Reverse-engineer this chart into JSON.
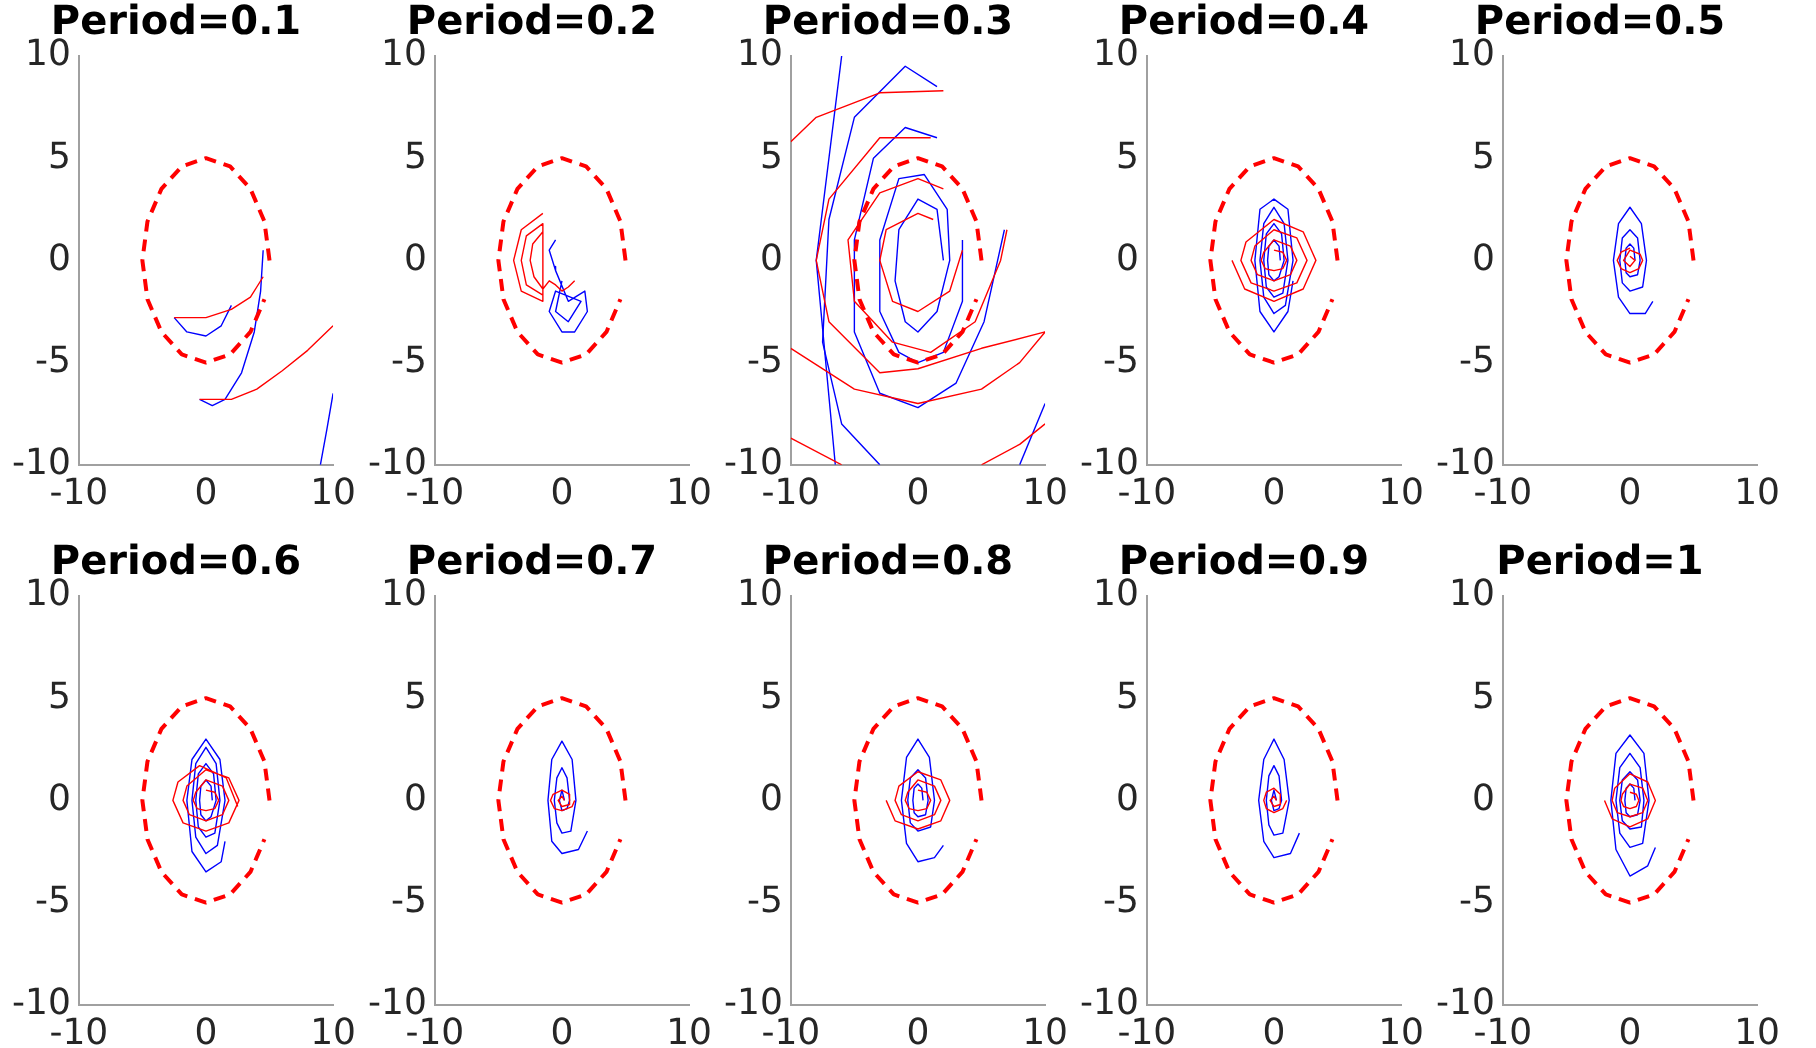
{
  "chart_data": [
    {
      "type": "line",
      "title": "Period=0.1",
      "xlim": [
        -10,
        10
      ],
      "xticks": [
        -10,
        0,
        10
      ],
      "ylim": [
        -10,
        10
      ],
      "yticks": [
        -10,
        -5,
        0,
        5,
        10
      ],
      "series": [
        {
          "color": "#0000ff",
          "x": [
            -2.5,
            -1.5,
            0,
            1.2,
            2
          ],
          "values": [
            -2.8,
            -3.5,
            -3.7,
            -3.2,
            -2.2
          ]
        },
        {
          "color": "#0000ff",
          "x": [
            -0.5,
            0.5,
            1.5,
            2.8,
            3.8,
            4.3,
            4.5
          ],
          "values": [
            -6.8,
            -7.1,
            -6.8,
            -5.5,
            -3.5,
            -1.5,
            0.5
          ]
        },
        {
          "color": "#0000ff",
          "x": [
            9,
            9.5,
            10
          ],
          "values": [
            -10,
            -8.3,
            -6.5
          ]
        },
        {
          "color": "#ff0000",
          "x": [
            -2.5,
            0,
            2,
            3.5,
            4.5
          ],
          "values": [
            -2.8,
            -2.8,
            -2.4,
            -1.8,
            -0.8
          ]
        },
        {
          "color": "#ff0000",
          "x": [
            -0.5,
            2,
            4,
            6,
            8,
            10
          ],
          "values": [
            -6.8,
            -6.8,
            -6.3,
            -5.4,
            -4.4,
            -3.2
          ]
        },
        {
          "color": "#ff0000",
          "line_style": "dashed",
          "x": [
            5,
            4.6,
            3.5,
            1.9,
            0,
            -1.9,
            -3.5,
            -4.6,
            -5,
            -4.6,
            -3.5,
            -1.9,
            0,
            1.9,
            3.5,
            4.6
          ],
          "values": [
            0,
            1.9,
            3.5,
            4.6,
            5,
            4.6,
            3.5,
            1.9,
            0,
            -1.9,
            -3.5,
            -4.6,
            -5,
            -4.6,
            -3.5,
            -1.9
          ]
        }
      ]
    },
    {
      "type": "line",
      "title": "Period=0.2",
      "xlim": [
        -10,
        10
      ],
      "xticks": [
        -10,
        0,
        10
      ],
      "ylim": [
        -10,
        10
      ],
      "yticks": [
        -10,
        -5,
        0,
        5,
        10
      ],
      "series": [
        {
          "color": "#0000ff",
          "x": [
            -0.5,
            -1,
            -0.6,
            -0.5,
            0.5,
            1.8,
            2,
            1,
            0,
            -1,
            -0.5,
            1.5,
            0.5,
            -0.5,
            0
          ],
          "values": [
            1,
            0.5,
            -0.3,
            -0.5,
            -2,
            -1.5,
            -2.5,
            -3.5,
            -3.5,
            -2.5,
            -1.5,
            -2,
            -3,
            -2.5,
            -1
          ]
        },
        {
          "color": "#ff0000",
          "x": [
            -1.5,
            -3.2,
            -3.8,
            -3.2,
            -1.5,
            -1.5,
            -2.8,
            -3.2,
            -2.8,
            -1.5,
            -1.5,
            -2.3,
            -2.5,
            -2.2,
            -1.5,
            -1,
            -0.5,
            0,
            0.5,
            1
          ],
          "values": [
            2.3,
            1.5,
            0,
            -1.5,
            -2,
            1.8,
            1.2,
            0,
            -1.2,
            -1.7,
            1.4,
            0.8,
            0,
            -0.8,
            -1.4,
            -1,
            -1.2,
            -1.5,
            -1.3,
            -1
          ]
        },
        {
          "color": "#ff0000",
          "line_style": "dashed",
          "x": [
            5,
            4.6,
            3.5,
            1.9,
            0,
            -1.9,
            -3.5,
            -4.6,
            -5,
            -4.6,
            -3.5,
            -1.9,
            0,
            1.9,
            3.5,
            4.6
          ],
          "values": [
            0,
            1.9,
            3.5,
            4.6,
            5,
            4.6,
            3.5,
            1.9,
            0,
            -1.9,
            -3.5,
            -4.6,
            -5,
            -4.6,
            -3.5,
            -1.9
          ]
        }
      ]
    },
    {
      "type": "line",
      "title": "Period=0.3",
      "xlim": [
        -10,
        10
      ],
      "xticks": [
        -10,
        0,
        10
      ],
      "ylim": [
        -10,
        10
      ],
      "yticks": [
        -10,
        -5,
        0,
        5,
        10
      ],
      "series": [
        {
          "color": "#0000ff",
          "x": [
            2,
            1.5,
            0,
            -1.5,
            -1.8,
            -1,
            0,
            1.5,
            2.5,
            2.3,
            0.5,
            -1.5,
            -3,
            -3,
            -1.5,
            0,
            2,
            3.5,
            3.5
          ],
          "values": [
            0,
            2.5,
            3,
            1.5,
            -1,
            -3,
            -3.5,
            -2.5,
            0,
            2.5,
            4.2,
            4,
            1,
            -2.5,
            -4.5,
            -5,
            -4.5,
            -2,
            1
          ]
        },
        {
          "color": "#0000ff",
          "x": [
            1.5,
            -1,
            -3.5,
            -5,
            -5,
            -3,
            0,
            3,
            5.2,
            6.8
          ],
          "values": [
            6,
            6.5,
            5,
            1,
            -3.5,
            -6.5,
            -7.2,
            -6,
            -3,
            1.5
          ]
        },
        {
          "color": "#0000ff",
          "x": [
            1.5,
            -1,
            -5,
            -7,
            -7.5,
            -6,
            -3
          ],
          "values": [
            8.5,
            9.5,
            7,
            2,
            -4,
            -8,
            -10
          ]
        },
        {
          "color": "#0000ff",
          "x": [
            -6,
            -8,
            -6.5
          ],
          "values": [
            10,
            0,
            -10
          ]
        },
        {
          "color": "#0000ff",
          "x": [
            10,
            8
          ],
          "values": [
            -7,
            -10
          ]
        },
        {
          "color": "#ff0000",
          "x": [
            1.2,
            0,
            -2.5,
            -3,
            -2,
            0,
            2.5,
            3.5
          ],
          "values": [
            2,
            2.3,
            1.5,
            0,
            -2,
            -2.5,
            -1.5,
            0.5
          ]
        },
        {
          "color": "#ff0000",
          "x": [
            2,
            0,
            -3,
            -5.5,
            -5,
            -2,
            1,
            4.5,
            6.5,
            7
          ],
          "values": [
            3.5,
            4,
            3.3,
            1,
            -2,
            -4,
            -4.5,
            -3,
            0,
            1.5
          ]
        },
        {
          "color": "#ff0000",
          "x": [
            1,
            -3,
            -7,
            -8,
            -7,
            -3,
            0,
            5,
            10
          ],
          "values": [
            6,
            6,
            3,
            0,
            -3,
            -5.5,
            -5.3,
            -4.3,
            -3.5
          ]
        },
        {
          "color": "#ff0000",
          "x": [
            2,
            -3,
            -8,
            -10
          ],
          "values": [
            8.3,
            8.2,
            7,
            5.8
          ]
        },
        {
          "color": "#ff0000",
          "x": [
            -10,
            -5,
            0,
            5,
            8,
            10
          ],
          "values": [
            -4.3,
            -6.3,
            -7,
            -6.3,
            -5,
            -3.5
          ]
        },
        {
          "color": "#ff0000",
          "x": [
            -10,
            -6
          ],
          "values": [
            -8.7,
            -10
          ]
        },
        {
          "color": "#ff0000",
          "x": [
            5,
            8,
            10
          ],
          "values": [
            -10,
            -9,
            -8
          ]
        },
        {
          "color": "#ff0000",
          "line_style": "dashed",
          "x": [
            5,
            4.6,
            3.5,
            1.9,
            0,
            -1.9,
            -3.5,
            -4.6,
            -5,
            -4.6,
            -3.5,
            -1.9,
            0,
            1.9,
            3.5,
            4.6
          ],
          "values": [
            0,
            1.9,
            3.5,
            4.6,
            5,
            4.6,
            3.5,
            1.9,
            0,
            -1.9,
            -3.5,
            -4.6,
            -5,
            -4.6,
            -3.5,
            -1.9
          ]
        }
      ]
    },
    {
      "type": "line",
      "title": "Period=0.4",
      "xlim": [
        -10,
        10
      ],
      "xticks": [
        -10,
        0,
        10
      ],
      "ylim": [
        -10,
        10
      ],
      "yticks": [
        -10,
        -5,
        0,
        5,
        10
      ],
      "series": [
        {
          "color": "#0000ff",
          "x": [
            0.5,
            0.4,
            0,
            -0.4,
            -0.5,
            -0.4,
            0,
            0.4,
            0.8,
            0.6,
            0,
            -0.6,
            -0.8,
            -0.6,
            0,
            0.7,
            1.1,
            0.8,
            0,
            -0.8,
            -1.1,
            -0.8,
            0,
            0.9,
            1.5,
            1.1,
            0,
            -1.1,
            -1.5,
            -1.1,
            0,
            1.1,
            1.5
          ],
          "values": [
            0,
            0.7,
            1,
            0.7,
            0,
            -0.7,
            -1,
            -0.8,
            0,
            1.3,
            1.8,
            1.3,
            0,
            -1.3,
            -1.8,
            -1.6,
            0,
            1.8,
            2.6,
            1.8,
            0,
            -1.8,
            -2.6,
            -2.2,
            0,
            2.5,
            3,
            2.5,
            0,
            -2.5,
            -3.5,
            -2.5,
            -1
          ]
        },
        {
          "color": "#ff0000",
          "x": [
            0,
            0.7,
            1,
            0.7,
            0,
            -0.7,
            -1,
            -0.8,
            0,
            1.3,
            1.8,
            1.3,
            0,
            -1.3,
            -1.8,
            -1.5,
            0,
            1.8,
            2.6,
            1.8,
            0,
            -1.8,
            -2.6,
            -2.2,
            0,
            2.3,
            3.3,
            2.3,
            0,
            -2.3,
            -3.3
          ],
          "values": [
            0.5,
            0.4,
            0,
            -0.4,
            -0.5,
            -0.4,
            0,
            0.4,
            1,
            0.7,
            0,
            -0.7,
            -1,
            -0.7,
            0,
            0.7,
            1.5,
            1.1,
            0,
            -1.1,
            -1.5,
            -1.1,
            0,
            0.9,
            2,
            1.4,
            0,
            -1.4,
            -2,
            -1.4,
            0
          ]
        },
        {
          "color": "#ff0000",
          "line_style": "dashed",
          "x": [
            5,
            4.6,
            3.5,
            1.9,
            0,
            -1.9,
            -3.5,
            -4.6,
            -5,
            -4.6,
            -3.5,
            -1.9,
            0,
            1.9,
            3.5,
            4.6
          ],
          "values": [
            0,
            1.9,
            3.5,
            4.6,
            5,
            4.6,
            3.5,
            1.9,
            0,
            -1.9,
            -3.5,
            -4.6,
            -5,
            -4.6,
            -3.5,
            -1.9
          ]
        }
      ]
    },
    {
      "type": "line",
      "title": "Period=0.5",
      "xlim": [
        -10,
        10
      ],
      "xticks": [
        -10,
        0,
        10
      ],
      "ylim": [
        -10,
        10
      ],
      "yticks": [
        -10,
        -5,
        0,
        5,
        10
      ],
      "series": [
        {
          "color": "#0000ff",
          "x": [
            0.4,
            0.3,
            0,
            -0.3,
            -0.4,
            -0.3,
            0,
            0.6,
            0.8,
            0.6,
            0,
            -0.6,
            -0.8,
            -0.6,
            0,
            1,
            1.3,
            0.9,
            0,
            -0.9,
            -1.3,
            -0.9,
            0,
            1.2,
            1.8
          ],
          "values": [
            0,
            0.6,
            0.8,
            0.6,
            0,
            -0.6,
            -0.8,
            -0.7,
            0,
            1.1,
            1.5,
            1.1,
            0,
            -1.1,
            -1.5,
            -1.3,
            0,
            1.8,
            2.6,
            1.8,
            0,
            -1.8,
            -2.6,
            -2.6,
            -2
          ]
        },
        {
          "color": "#ff0000",
          "x": [
            0,
            0.4,
            0,
            -0.5,
            0,
            0.8,
            1,
            0.7,
            0,
            -0.7,
            -1,
            -0.7,
            0
          ],
          "values": [
            0.2,
            0,
            -0.3,
            0,
            0.5,
            0.3,
            0,
            -0.4,
            -0.6,
            -0.4,
            0,
            0.4,
            0.6
          ]
        },
        {
          "color": "#ff0000",
          "line_style": "dashed",
          "x": [
            5,
            4.6,
            3.5,
            1.9,
            0,
            -1.9,
            -3.5,
            -4.6,
            -5,
            -4.6,
            -3.5,
            -1.9,
            0,
            1.9,
            3.5,
            4.6
          ],
          "values": [
            0,
            1.9,
            3.5,
            4.6,
            5,
            4.6,
            3.5,
            1.9,
            0,
            -1.9,
            -3.5,
            -4.6,
            -5,
            -4.6,
            -3.5,
            -1.9
          ]
        }
      ]
    },
    {
      "type": "line",
      "title": "Period=0.6",
      "xlim": [
        -10,
        10
      ],
      "xticks": [
        -10,
        0,
        10
      ],
      "ylim": [
        -10,
        10
      ],
      "yticks": [
        -10,
        -5,
        0,
        5,
        10
      ],
      "series": [
        {
          "color": "#0000ff",
          "x": [
            0.5,
            0.4,
            0,
            -0.4,
            -0.5,
            -0.4,
            0,
            0.4,
            0.8,
            0.6,
            0,
            -0.6,
            -0.8,
            -0.6,
            0,
            0.7,
            1.1,
            0.8,
            0,
            -0.8,
            -1.1,
            -0.8,
            0,
            0.9,
            1.5,
            1.1,
            0,
            -1.1,
            -1.5,
            -1.1,
            0,
            1.2,
            1.5
          ],
          "values": [
            0,
            0.7,
            1,
            0.7,
            0,
            -0.7,
            -1,
            -0.8,
            0,
            1.3,
            1.8,
            1.3,
            0,
            -1.3,
            -1.8,
            -1.6,
            0,
            1.8,
            2.6,
            1.8,
            0,
            -1.8,
            -2.6,
            -2.2,
            0,
            2,
            3,
            2,
            0,
            -2.5,
            -3.5,
            -3,
            -2
          ]
        },
        {
          "color": "#ff0000",
          "x": [
            0,
            0.7,
            1,
            0.7,
            0,
            -0.7,
            -1,
            -0.8,
            0,
            1.3,
            1.8,
            1.3,
            0,
            -1.3,
            -1.8,
            -1.5,
            0,
            1.8,
            2.6,
            1.8,
            0,
            -1.8,
            -2.6,
            -2.2,
            -0.5,
            1.6,
            2.5
          ],
          "values": [
            0.5,
            0.4,
            0,
            -0.4,
            -0.5,
            -0.4,
            0,
            0.4,
            1,
            0.7,
            0,
            -0.7,
            -1,
            -0.7,
            0,
            0.7,
            1.5,
            1.1,
            0,
            -1.1,
            -1.5,
            -1.1,
            0,
            0.9,
            1.7,
            1.1,
            -0.3
          ]
        },
        {
          "color": "#ff0000",
          "line_style": "dashed",
          "x": [
            5,
            4.6,
            3.5,
            1.9,
            0,
            -1.9,
            -3.5,
            -4.6,
            -5,
            -4.6,
            -3.5,
            -1.9,
            0,
            1.9,
            3.5,
            4.6
          ],
          "values": [
            0,
            1.9,
            3.5,
            4.6,
            5,
            4.6,
            3.5,
            1.9,
            0,
            -1.9,
            -3.5,
            -4.6,
            -5,
            -4.6,
            -3.5,
            -1.9
          ]
        }
      ]
    },
    {
      "type": "line",
      "title": "Period=0.7",
      "xlim": [
        -10,
        10
      ],
      "xticks": [
        -10,
        0,
        10
      ],
      "ylim": [
        -10,
        10
      ],
      "yticks": [
        -10,
        -5,
        0,
        5,
        10
      ],
      "series": [
        {
          "color": "#0000ff",
          "x": [
            0.2,
            0,
            -0.2,
            0,
            0.4,
            0.6,
            0.4,
            0,
            -0.4,
            -0.6,
            -0.4,
            0,
            0.7,
            1.1,
            0.8,
            0,
            -0.8,
            -1.1,
            -0.8,
            0,
            1.3,
            2
          ],
          "values": [
            0,
            0.5,
            0,
            -0.5,
            -0.4,
            0,
            1.1,
            1.6,
            1.1,
            0,
            -1.1,
            -1.6,
            -1.5,
            0,
            2,
            2.9,
            2,
            0,
            -2,
            -2.6,
            -2.4,
            -1.5
          ]
        },
        {
          "color": "#ff0000",
          "x": [
            0.2,
            0,
            -0.3,
            0,
            0.6,
            0.6,
            0,
            -0.7,
            -0.9,
            -0.6,
            0,
            0.8,
            1
          ],
          "values": [
            0,
            0.2,
            0,
            -0.3,
            -0.2,
            0.3,
            0.5,
            0.3,
            0,
            -0.4,
            -0.5,
            -0.3,
            0
          ]
        },
        {
          "color": "#ff0000",
          "line_style": "dashed",
          "x": [
            5,
            4.6,
            3.5,
            1.9,
            0,
            -1.9,
            -3.5,
            -4.6,
            -5,
            -4.6,
            -3.5,
            -1.9,
            0,
            1.9,
            3.5,
            4.6
          ],
          "values": [
            0,
            1.9,
            3.5,
            4.6,
            5,
            4.6,
            3.5,
            1.9,
            0,
            -1.9,
            -3.5,
            -4.6,
            -5,
            -4.6,
            -3.5,
            -1.9
          ]
        }
      ]
    },
    {
      "type": "line",
      "title": "Period=0.8",
      "xlim": [
        -10,
        10
      ],
      "xticks": [
        -10,
        0,
        10
      ],
      "ylim": [
        -10,
        10
      ],
      "yticks": [
        -10,
        -5,
        0,
        5,
        10
      ],
      "series": [
        {
          "color": "#0000ff",
          "x": [
            0.4,
            0.3,
            0,
            -0.3,
            -0.4,
            -0.3,
            0,
            0.6,
            0.8,
            0.6,
            0,
            -0.6,
            -0.8,
            -0.6,
            0,
            1,
            1.3,
            0.9,
            0,
            -0.9,
            -1.3,
            -0.9,
            0,
            1.3,
            2
          ],
          "values": [
            0,
            0.6,
            0.8,
            0.6,
            0,
            -0.6,
            -0.8,
            -0.7,
            0,
            1.1,
            1.5,
            1.1,
            0,
            -1.1,
            -1.5,
            -1.3,
            0,
            2.1,
            3,
            2.1,
            0,
            -2.1,
            -3,
            -2.8,
            -2.2
          ]
        },
        {
          "color": "#ff0000",
          "x": [
            0,
            0.7,
            1,
            0.7,
            0,
            -0.7,
            -1,
            -0.8,
            0,
            1.3,
            1.8,
            1.3,
            0,
            -1.3,
            -1.8,
            -1.5,
            0,
            1.8,
            2.5,
            1.8,
            0,
            -1.8,
            -2.5
          ],
          "values": [
            0.5,
            0.4,
            0,
            -0.4,
            -0.5,
            -0.4,
            0,
            0.4,
            1,
            0.7,
            0,
            -0.7,
            -1,
            -0.7,
            0,
            0.7,
            1.4,
            1,
            0,
            -1,
            -1.4,
            -1,
            0
          ]
        },
        {
          "color": "#ff0000",
          "line_style": "dashed",
          "x": [
            5,
            4.6,
            3.5,
            1.9,
            0,
            -1.9,
            -3.5,
            -4.6,
            -5,
            -4.6,
            -3.5,
            -1.9,
            0,
            1.9,
            3.5,
            4.6
          ],
          "values": [
            0,
            1.9,
            3.5,
            4.6,
            5,
            4.6,
            3.5,
            1.9,
            0,
            -1.9,
            -3.5,
            -4.6,
            -5,
            -4.6,
            -3.5,
            -1.9
          ]
        }
      ]
    },
    {
      "type": "line",
      "title": "Period=0.9",
      "xlim": [
        -10,
        10
      ],
      "xticks": [
        -10,
        0,
        10
      ],
      "ylim": [
        -10,
        10
      ],
      "yticks": [
        -10,
        -5,
        0,
        5,
        10
      ],
      "series": [
        {
          "color": "#0000ff",
          "x": [
            0.2,
            0,
            -0.2,
            0,
            0.4,
            0.6,
            0.4,
            0,
            -0.4,
            -0.6,
            -0.4,
            0,
            0.7,
            1.2,
            0.8,
            0,
            -0.8,
            -1.2,
            -0.8,
            0,
            1.3,
            2
          ],
          "values": [
            0,
            0.5,
            0,
            -0.5,
            -0.4,
            0,
            1.2,
            1.7,
            1.2,
            0,
            -1.2,
            -1.7,
            -1.6,
            0,
            2,
            3,
            2,
            0,
            -2,
            -2.8,
            -2.6,
            -1.6
          ]
        },
        {
          "color": "#ff0000",
          "x": [
            0.2,
            0,
            -0.3,
            0,
            0.5,
            0.5,
            0,
            -0.6,
            -0.8,
            -0.6,
            0,
            0.7,
            1
          ],
          "values": [
            0,
            0.2,
            0,
            -0.3,
            -0.2,
            0.3,
            0.6,
            0.4,
            0,
            -0.4,
            -0.6,
            -0.4,
            0
          ]
        },
        {
          "color": "#ff0000",
          "line_style": "dashed",
          "x": [
            5,
            4.6,
            3.5,
            1.9,
            0,
            -1.9,
            -3.5,
            -4.6,
            -5,
            -4.6,
            -3.5,
            -1.9,
            0,
            1.9,
            3.5,
            4.6
          ],
          "values": [
            0,
            1.9,
            3.5,
            4.6,
            5,
            4.6,
            3.5,
            1.9,
            0,
            -1.9,
            -3.5,
            -4.6,
            -5,
            -4.6,
            -3.5,
            -1.9
          ]
        }
      ]
    },
    {
      "type": "line",
      "title": "Period=1",
      "xlim": [
        -10,
        10
      ],
      "xticks": [
        -10,
        0,
        10
      ],
      "ylim": [
        -10,
        10
      ],
      "yticks": [
        -10,
        -5,
        0,
        5,
        10
      ],
      "series": [
        {
          "color": "#0000ff",
          "x": [
            0.4,
            0.3,
            0,
            -0.3,
            -0.4,
            -0.3,
            0,
            0.6,
            0.8,
            0.6,
            0,
            -0.6,
            -0.8,
            -0.6,
            0,
            0.9,
            1.1,
            0.8,
            0,
            -0.8,
            -1.1,
            -0.8,
            0,
            1,
            1.5,
            1.1,
            0,
            -1.1,
            -1.5,
            -1.1,
            0,
            1.4,
            2
          ],
          "values": [
            0,
            0.6,
            0.8,
            0.6,
            0,
            -0.6,
            -0.8,
            -0.7,
            0,
            1,
            1.4,
            1,
            0,
            -1,
            -1.4,
            -1.3,
            0,
            1.6,
            2.3,
            1.6,
            0,
            -1.6,
            -2.3,
            -2.1,
            0,
            2.3,
            3.2,
            2.3,
            0,
            -2.4,
            -3.7,
            -3.2,
            -2.3
          ]
        },
        {
          "color": "#ff0000",
          "x": [
            0,
            0.5,
            0.7,
            0.5,
            0,
            -0.5,
            -0.7,
            -0.6,
            0,
            1,
            1.4,
            1,
            0,
            -1,
            -1.4,
            -1.2,
            0,
            1.4,
            2,
            1.4,
            0,
            -1.4,
            -2
          ],
          "values": [
            0.4,
            0.3,
            0,
            -0.3,
            -0.4,
            -0.3,
            0,
            0.3,
            0.8,
            0.6,
            0,
            -0.6,
            -0.8,
            -0.6,
            0,
            0.6,
            1.3,
            0.9,
            0,
            -0.9,
            -1.3,
            -0.9,
            0
          ]
        },
        {
          "color": "#ff0000",
          "line_style": "dashed",
          "x": [
            5,
            4.6,
            3.5,
            1.9,
            0,
            -1.9,
            -3.5,
            -4.6,
            -5,
            -4.6,
            -3.5,
            -1.9,
            0,
            1.9,
            3.5,
            4.6
          ],
          "values": [
            0,
            1.9,
            3.5,
            4.6,
            5,
            4.6,
            3.5,
            1.9,
            0,
            -1.9,
            -3.5,
            -4.6,
            -5,
            -4.6,
            -3.5,
            -1.9
          ]
        }
      ]
    }
  ]
}
